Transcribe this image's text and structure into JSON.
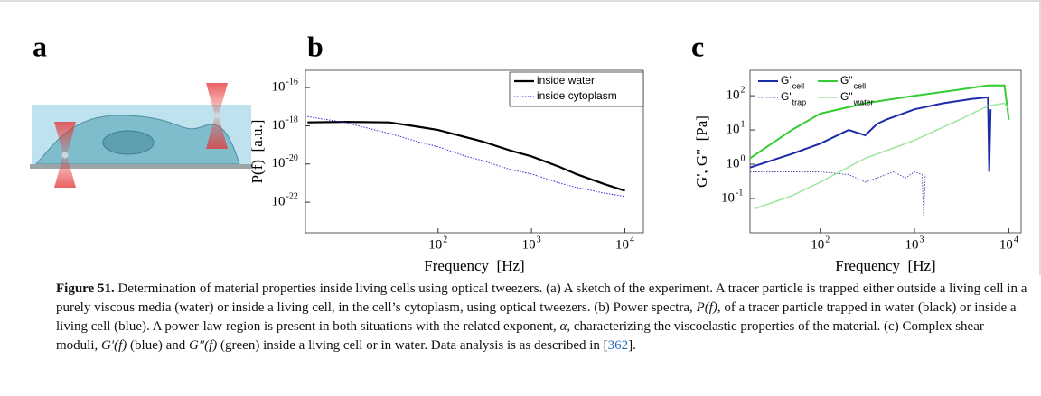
{
  "figure": {
    "panel_labels": [
      "a",
      "b",
      "c"
    ]
  },
  "chart_data": [
    {
      "type": "line",
      "xlabel": "Frequency  [Hz]",
      "ylabel": "P(f)  [a.u.]",
      "log_x": true,
      "log_y": true,
      "xlim": [
        3.8,
        15800
      ],
      "ylim": [
        2.5e-24,
        8e-16
      ],
      "xticks": [
        {
          "value": 100,
          "label": "10",
          "exponent": "2"
        },
        {
          "value": 1000,
          "label": "10",
          "exponent": "3"
        },
        {
          "value": 10000,
          "label": "10",
          "exponent": "4"
        }
      ],
      "yticks": [
        {
          "value": 1e-16,
          "label": "10",
          "exponent": "-16"
        },
        {
          "value": 1e-18,
          "label": "10",
          "exponent": "-18"
        },
        {
          "value": 1e-20,
          "label": "10",
          "exponent": "-20"
        },
        {
          "value": 1e-22,
          "label": "10",
          "exponent": "-22"
        }
      ],
      "legend": "upper right",
      "legend_columns": 1,
      "legend_box": true,
      "series": [
        {
          "name": "inside water",
          "color": "#000000",
          "width": 2.2,
          "style": "solid",
          "x": [
            4,
            10,
            30,
            60,
            100,
            200,
            300,
            600,
            1000,
            2000,
            3000,
            6000,
            10000
          ],
          "values": [
            1.5e-18,
            1.6e-18,
            1.5e-18,
            9e-19,
            6e-19,
            2.5e-19,
            1.5e-19,
            5e-20,
            2.5e-20,
            7e-21,
            3e-21,
            9e-22,
            4e-22
          ]
        },
        {
          "name": "inside cytoplasm",
          "color": "#2b2bd6",
          "width": 1,
          "style": "dotted",
          "x": [
            4,
            10,
            30,
            60,
            100,
            200,
            300,
            600,
            1000,
            2000,
            3000,
            6000,
            10000
          ],
          "values": [
            3e-18,
            1.5e-18,
            4e-19,
            1.5e-19,
            8e-20,
            2.5e-20,
            1.5e-20,
            5e-21,
            3e-21,
            1e-21,
            6e-22,
            3e-22,
            2e-22
          ]
        }
      ]
    },
    {
      "type": "line",
      "xlabel": "Frequency  [Hz]",
      "ylabel": "G', G\"  [Pa]",
      "log_x": true,
      "log_y": true,
      "xlim": [
        18,
        13500
      ],
      "ylim": [
        0.01,
        550
      ],
      "xticks": [
        {
          "value": 100,
          "label": "10",
          "exponent": "2"
        },
        {
          "value": 1000,
          "label": "10",
          "exponent": "3"
        },
        {
          "value": 10000,
          "label": "10",
          "exponent": "4"
        }
      ],
      "yticks": [
        {
          "value": 100,
          "label": "10",
          "exponent": "2"
        },
        {
          "value": 10,
          "label": "10",
          "exponent": "1"
        },
        {
          "value": 1,
          "label": "10",
          "exponent": "0"
        },
        {
          "value": 0.1,
          "label": "10",
          "exponent": "-1"
        }
      ],
      "legend": "upper left",
      "legend_columns": 2,
      "legend_box": false,
      "series": [
        {
          "name": "G'",
          "subscript": "cell",
          "color": "#1c2aa8",
          "width": 2,
          "style": "solid",
          "x": [
            18,
            50,
            100,
            200,
            300,
            400,
            500,
            1000,
            2000,
            4000,
            6000,
            6200,
            6400
          ],
          "values": [
            0.8,
            2,
            4,
            10,
            7,
            15,
            20,
            40,
            60,
            80,
            90,
            0.6,
            40
          ]
        },
        {
          "name": "G'",
          "subscript": "trap",
          "color": "#4b4bb5",
          "width": 1,
          "style": "dotted",
          "x": [
            18,
            100,
            200,
            300,
            400,
            600,
            800,
            1000,
            1200,
            1250,
            1300
          ],
          "values": [
            0.6,
            0.6,
            0.5,
            0.3,
            0.4,
            0.6,
            0.4,
            0.6,
            0.5,
            0.03,
            0.5
          ]
        },
        {
          "name": "G\"",
          "subscript": "cell",
          "color": "#33cc33",
          "width": 2,
          "style": "solid",
          "x": [
            18,
            50,
            100,
            300,
            1000,
            3000,
            6000,
            9000,
            10000
          ],
          "values": [
            1.5,
            10,
            30,
            60,
            100,
            150,
            200,
            200,
            20
          ]
        },
        {
          "name": "G\"",
          "subscript": "water",
          "color": "#9fe49f",
          "width": 1.5,
          "style": "solid",
          "x": [
            20,
            50,
            100,
            300,
            1000,
            3000,
            6000,
            9000,
            10000
          ],
          "values": [
            0.05,
            0.12,
            0.3,
            1.5,
            5,
            20,
            50,
            60,
            40
          ]
        }
      ]
    }
  ],
  "caption": {
    "segments": [
      {
        "text": "Figure 51.",
        "style": "bold"
      },
      {
        "text": " Determination of material properties inside living cells using optical tweezers. (a) A sketch of the experiment. A tracer particle is trapped either outside a living cell in a purely viscous media (water) or inside a living cell, in the cell’s cytoplasm, using optical tweezers. (b) Power spectra, "
      },
      {
        "text": "P(f)",
        "style": "italic"
      },
      {
        "text": ", of a tracer particle trapped in water (black) or inside a living cell (blue). A power-law region is present in both situations with the related exponent, "
      },
      {
        "text": "α",
        "style": "italic"
      },
      {
        "text": ", characterizing the viscoelastic properties of the material. (c) Complex shear moduli, "
      },
      {
        "text": "G′(f)",
        "style": "italic"
      },
      {
        "text": " (blue) and "
      },
      {
        "text": "G″(f)",
        "style": "italic"
      },
      {
        "text": " (green) inside a living cell or in water. Data analysis is as described in ["
      },
      {
        "text": "362",
        "style": "link"
      },
      {
        "text": "]."
      }
    ]
  }
}
